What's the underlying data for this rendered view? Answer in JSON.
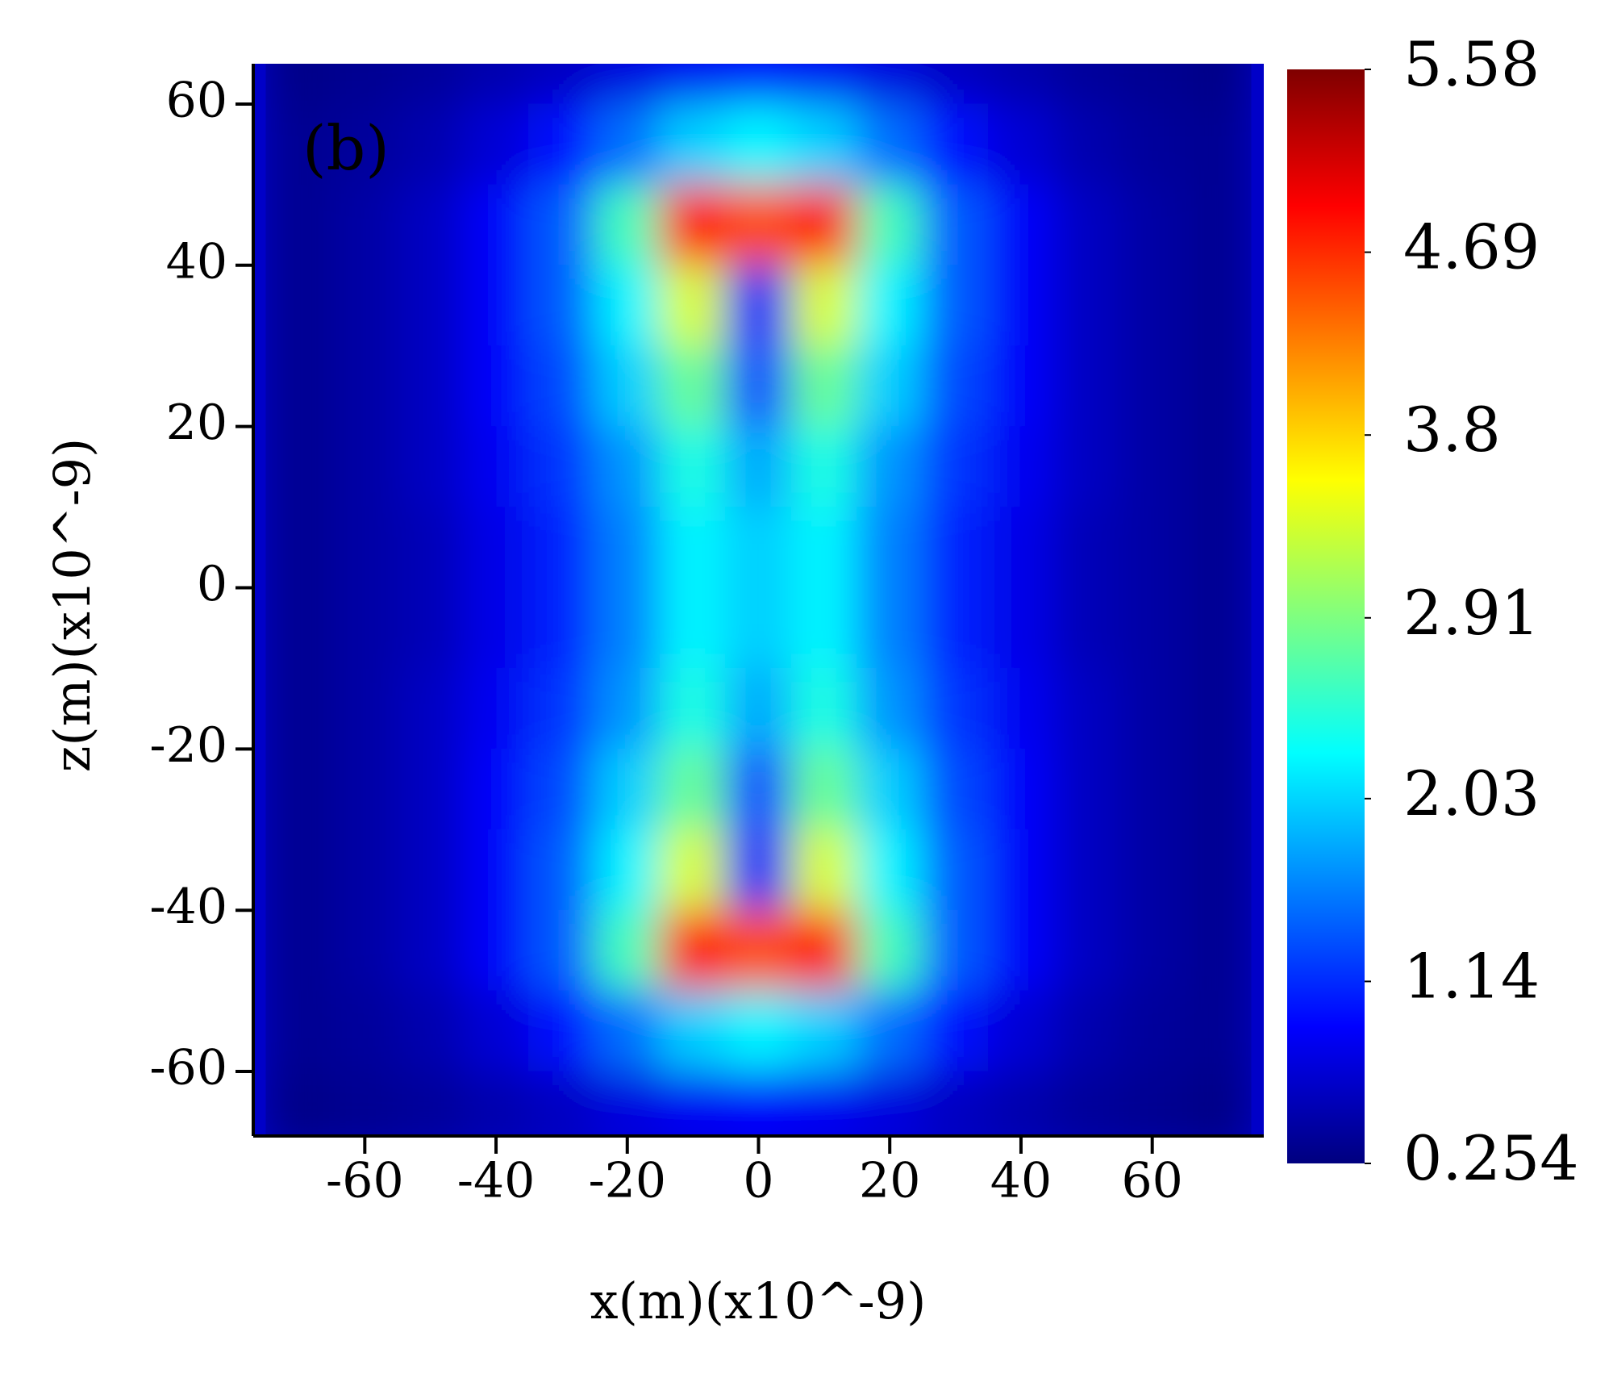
{
  "chart_data": {
    "type": "heatmap",
    "annotation": "(b)",
    "xlabel": "x(m)(x10^-9)",
    "ylabel": "z(m)(x10^-9)",
    "x": [
      -70,
      -60,
      -50,
      -40,
      -30,
      -20,
      -10,
      0,
      10,
      20,
      30,
      40,
      50,
      60,
      70
    ],
    "y": [
      65,
      55,
      45,
      35,
      25,
      15,
      5,
      -5,
      -15,
      -25,
      -35,
      -45,
      -55,
      -65
    ],
    "values": [
      [
        0.3,
        0.35,
        0.4,
        0.5,
        0.6,
        0.75,
        0.85,
        0.9,
        0.85,
        0.75,
        0.6,
        0.5,
        0.4,
        0.35,
        0.3
      ],
      [
        0.35,
        0.4,
        0.5,
        0.7,
        1.0,
        1.5,
        2.0,
        2.2,
        2.0,
        1.5,
        1.0,
        0.7,
        0.5,
        0.4,
        0.35
      ],
      [
        0.35,
        0.45,
        0.6,
        0.9,
        1.4,
        2.6,
        4.8,
        4.5,
        4.8,
        2.6,
        1.4,
        0.9,
        0.6,
        0.45,
        0.35
      ],
      [
        0.35,
        0.45,
        0.6,
        0.9,
        1.4,
        2.2,
        3.4,
        0.9,
        3.4,
        2.2,
        1.4,
        0.9,
        0.6,
        0.45,
        0.35
      ],
      [
        0.35,
        0.45,
        0.6,
        0.9,
        1.3,
        2.0,
        2.8,
        1.3,
        2.8,
        2.0,
        1.3,
        0.9,
        0.6,
        0.45,
        0.35
      ],
      [
        0.35,
        0.45,
        0.6,
        0.85,
        1.2,
        1.7,
        2.4,
        1.8,
        2.4,
        1.7,
        1.2,
        0.85,
        0.6,
        0.45,
        0.35
      ],
      [
        0.35,
        0.45,
        0.55,
        0.8,
        1.1,
        1.6,
        2.2,
        2.0,
        2.2,
        1.6,
        1.1,
        0.8,
        0.55,
        0.45,
        0.35
      ],
      [
        0.35,
        0.45,
        0.55,
        0.8,
        1.1,
        1.6,
        2.2,
        2.0,
        2.2,
        1.6,
        1.1,
        0.8,
        0.55,
        0.45,
        0.35
      ],
      [
        0.35,
        0.45,
        0.6,
        0.85,
        1.2,
        1.7,
        2.4,
        1.8,
        2.4,
        1.7,
        1.2,
        0.85,
        0.6,
        0.45,
        0.35
      ],
      [
        0.35,
        0.45,
        0.6,
        0.9,
        1.3,
        2.0,
        2.8,
        1.3,
        2.8,
        2.0,
        1.3,
        0.9,
        0.6,
        0.45,
        0.35
      ],
      [
        0.35,
        0.45,
        0.6,
        0.9,
        1.4,
        2.2,
        3.4,
        0.9,
        3.4,
        2.2,
        1.4,
        0.9,
        0.6,
        0.45,
        0.35
      ],
      [
        0.35,
        0.45,
        0.6,
        0.9,
        1.4,
        2.6,
        4.8,
        4.5,
        4.8,
        2.6,
        1.4,
        0.9,
        0.6,
        0.45,
        0.35
      ],
      [
        0.35,
        0.4,
        0.5,
        0.7,
        1.0,
        1.5,
        2.0,
        2.2,
        2.0,
        1.5,
        1.0,
        0.7,
        0.5,
        0.4,
        0.35
      ],
      [
        0.3,
        0.35,
        0.4,
        0.5,
        0.6,
        0.75,
        0.85,
        0.9,
        0.85,
        0.75,
        0.6,
        0.5,
        0.4,
        0.35,
        0.3
      ]
    ],
    "colormap": "jet",
    "xlim": [
      -77,
      77
    ],
    "ylim": [
      -68,
      65
    ],
    "xticks": [
      -60,
      -40,
      -20,
      0,
      20,
      40,
      60
    ],
    "yticks": [
      -60,
      -40,
      -20,
      0,
      20,
      40,
      60
    ],
    "clim": [
      0.254,
      5.58
    ],
    "cticks": [
      0.254,
      1.14,
      2.03,
      2.91,
      3.8,
      4.69,
      5.58
    ]
  }
}
